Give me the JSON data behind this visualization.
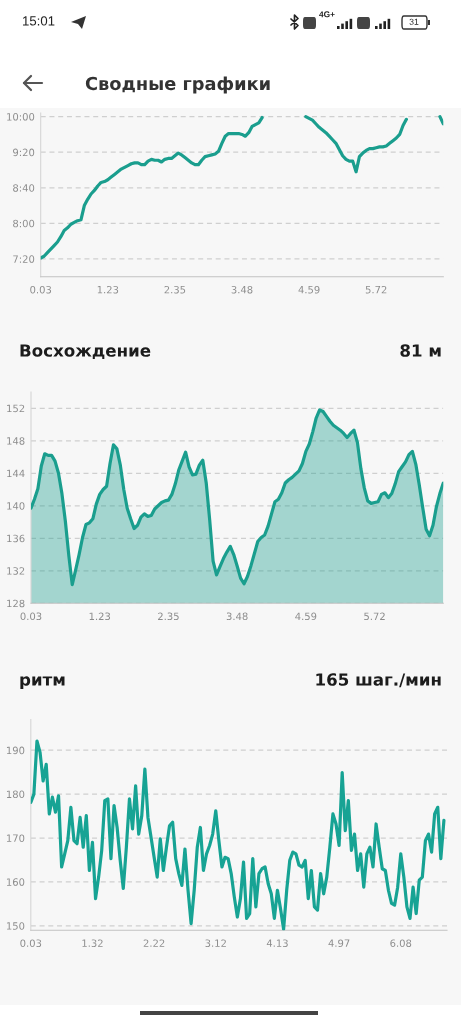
{
  "chart_data": [
    {
      "type": "other",
      "title": "Сводные графики",
      "annotations": [
        "15:01",
        "4G+",
        "31"
      ]
    },
    {
      "type": "line",
      "color": "#1a9e8e",
      "ylim": [
        420,
        604
      ],
      "grid": "y",
      "yticks": [
        {
          "value": 440,
          "label": "7:20"
        },
        {
          "value": 480,
          "label": "8:00"
        },
        {
          "value": 520,
          "label": "8:40"
        },
        {
          "value": 560,
          "label": "9:20"
        },
        {
          "value": 600,
          "label": "10:00"
        }
      ],
      "categories": [
        "0.03",
        null,
        null,
        null,
        null,
        null,
        null,
        null,
        null,
        null,
        null,
        null,
        null,
        null,
        null,
        null,
        null,
        null,
        null,
        null,
        "1.23",
        null,
        null,
        null,
        null,
        null,
        null,
        null,
        null,
        null,
        null,
        null,
        null,
        null,
        null,
        null,
        null,
        null,
        null,
        null,
        "2.35",
        null,
        null,
        null,
        null,
        null,
        null,
        null,
        null,
        null,
        null,
        null,
        null,
        null,
        null,
        null,
        null,
        null,
        null,
        null,
        "3.48",
        null,
        null,
        null,
        null,
        null,
        null,
        null,
        null,
        null,
        null,
        null,
        null,
        null,
        null,
        null,
        null,
        null,
        null,
        null,
        "4.59",
        null,
        null,
        null,
        null,
        null,
        null,
        null,
        null,
        null,
        null,
        null,
        null,
        null,
        null,
        null,
        null,
        null,
        null,
        null,
        "5.72",
        null,
        null,
        null,
        null,
        null,
        null,
        null,
        null,
        null,
        null,
        null,
        null,
        null,
        null,
        null,
        null,
        null,
        null,
        null,
        null
      ],
      "values": [
        441,
        443,
        447,
        451,
        455,
        459,
        465,
        472,
        475,
        479,
        481,
        483,
        484,
        500,
        507,
        513,
        517,
        522,
        526,
        527,
        529,
        532,
        535,
        538,
        541,
        543,
        545,
        547,
        548,
        548,
        546,
        546,
        550,
        552,
        551,
        551,
        549,
        552,
        553,
        553,
        556,
        559,
        557,
        554,
        551,
        548,
        546,
        546,
        551,
        555,
        556,
        557,
        558,
        561,
        570,
        578,
        581,
        581,
        581,
        581,
        580,
        578,
        582,
        589,
        591,
        593,
        599,
        null,
        null,
        null,
        null,
        null,
        null,
        null,
        null,
        null,
        null,
        null,
        null,
        600,
        598,
        596,
        592,
        588,
        585,
        582,
        578,
        574,
        570,
        563,
        556,
        552,
        550,
        550,
        538,
        555,
        559,
        562,
        564,
        564,
        565,
        566,
        566,
        567,
        570,
        573,
        576,
        580,
        590,
        597,
        null,
        null,
        null,
        null,
        null,
        null,
        null,
        null,
        null,
        600,
        592
      ]
    },
    {
      "type": "area",
      "title": "Восхождение",
      "subtitle": "81 м",
      "color": "#1a9e8e",
      "ylim": [
        128,
        154
      ],
      "grid": "y",
      "yticks": [
        128,
        132,
        136,
        140,
        144,
        148,
        152
      ],
      "categories": [
        "0.03",
        null,
        null,
        null,
        null,
        null,
        null,
        null,
        null,
        null,
        null,
        null,
        null,
        null,
        null,
        null,
        null,
        null,
        null,
        null,
        "1.23",
        null,
        null,
        null,
        null,
        null,
        null,
        null,
        null,
        null,
        null,
        null,
        null,
        null,
        null,
        null,
        null,
        null,
        null,
        null,
        "2.35",
        null,
        null,
        null,
        null,
        null,
        null,
        null,
        null,
        null,
        null,
        null,
        null,
        null,
        null,
        null,
        null,
        null,
        null,
        null,
        "3.48",
        null,
        null,
        null,
        null,
        null,
        null,
        null,
        null,
        null,
        null,
        null,
        null,
        null,
        null,
        null,
        null,
        null,
        null,
        null,
        "4.59",
        null,
        null,
        null,
        null,
        null,
        null,
        null,
        null,
        null,
        null,
        null,
        null,
        null,
        null,
        null,
        null,
        null,
        null,
        null,
        "5.72",
        null,
        null,
        null,
        null,
        null,
        null,
        null,
        null,
        null,
        null,
        null,
        null,
        null,
        null,
        null,
        null,
        null,
        null,
        null,
        null
      ],
      "values": [
        139.7,
        140.8,
        142.1,
        144.9,
        146.4,
        146.2,
        146.2,
        145.5,
        144.0,
        141.5,
        138.1,
        133.9,
        130.3,
        132.1,
        134.0,
        136.1,
        137.7,
        137.9,
        138.4,
        140.2,
        141.4,
        142.0,
        142.4,
        145.2,
        147.5,
        147.0,
        145.0,
        142.0,
        139.7,
        138.4,
        137.2,
        137.6,
        138.6,
        139.0,
        138.7,
        138.8,
        139.6,
        140.0,
        140.4,
        140.6,
        140.7,
        141.4,
        142.7,
        144.4,
        145.5,
        146.6,
        144.8,
        143.8,
        143.9,
        145.0,
        145.6,
        142.8,
        138.3,
        133.2,
        131.5,
        132.5,
        133.5,
        134.3,
        135.0,
        134.0,
        132.6,
        131.1,
        130.4,
        131.3,
        132.6,
        134.1,
        135.6,
        136.1,
        136.4,
        137.5,
        139.0,
        140.5,
        140.8,
        141.6,
        142.8,
        143.2,
        143.5,
        143.9,
        144.3,
        145.2,
        146.7,
        147.6,
        149.1,
        150.8,
        151.8,
        151.6,
        151.0,
        150.4,
        149.9,
        149.6,
        149.3,
        148.9,
        148.4,
        148.9,
        149.3,
        147.8,
        144.6,
        142.2,
        140.6,
        140.3,
        140.4,
        140.5,
        141.4,
        141.6,
        141.0,
        141.5,
        142.7,
        144.2,
        144.8,
        145.4,
        146.3,
        146.7,
        145.1,
        142.6,
        139.8,
        137.1,
        136.3,
        137.6,
        139.9,
        141.5,
        142.8
      ]
    },
    {
      "type": "line",
      "title": "ритм",
      "subtitle": "165 шаг./мин",
      "color": "#17a394",
      "ylim": [
        149,
        197
      ],
      "grid": "y",
      "yticks": [
        150,
        160,
        170,
        180,
        190
      ],
      "categories": [
        "0.03",
        null,
        null,
        null,
        null,
        null,
        null,
        null,
        null,
        null,
        null,
        null,
        null,
        null,
        null,
        null,
        null,
        null,
        null,
        null,
        "1.32",
        null,
        null,
        null,
        null,
        null,
        null,
        null,
        null,
        null,
        null,
        null,
        null,
        null,
        null,
        null,
        null,
        null,
        null,
        null,
        "2.22",
        null,
        null,
        null,
        null,
        null,
        null,
        null,
        null,
        null,
        null,
        null,
        null,
        null,
        null,
        null,
        null,
        null,
        null,
        null,
        "3.12",
        null,
        null,
        null,
        null,
        null,
        null,
        null,
        null,
        null,
        null,
        null,
        null,
        null,
        null,
        null,
        null,
        null,
        null,
        null,
        "4.13",
        null,
        null,
        null,
        null,
        null,
        null,
        null,
        null,
        null,
        null,
        null,
        null,
        null,
        null,
        null,
        null,
        null,
        null,
        null,
        "4.97",
        null,
        null,
        null,
        null,
        null,
        null,
        null,
        null,
        null,
        null,
        null,
        null,
        null,
        null,
        null,
        null,
        null,
        null,
        null,
        "6.08",
        null,
        null,
        null,
        null,
        null,
        null,
        null,
        null,
        null,
        null,
        null,
        null,
        null,
        null,
        null
      ],
      "values": [
        178.1,
        180.0,
        192.1,
        189.5,
        183.0,
        186.8,
        175.5,
        179.3,
        175.9,
        179.6,
        163.4,
        166.4,
        169.4,
        177.0,
        169.4,
        168.7,
        174.7,
        167.9,
        175.1,
        162.6,
        169.0,
        156.2,
        161.1,
        167.2,
        178.5,
        178.9,
        165.3,
        177.4,
        172.4,
        164.9,
        158.5,
        167.9,
        178.9,
        172.1,
        181.9,
        170.9,
        175.1,
        185.7,
        174.7,
        170.2,
        165.6,
        161.1,
        169.8,
        162.6,
        167.9,
        172.8,
        173.6,
        165.3,
        161.9,
        159.2,
        167.5,
        158.1,
        150.5,
        158.1,
        167.9,
        172.4,
        162.6,
        166.4,
        168.3,
        170.9,
        176.2,
        169.4,
        163.4,
        165.6,
        165.3,
        161.9,
        156.6,
        152.0,
        156.2,
        164.5,
        151.7,
        152.8,
        165.3,
        154.3,
        161.9,
        163.0,
        163.4,
        159.6,
        157.3,
        151.7,
        158.1,
        153.9,
        149.2,
        158.1,
        164.9,
        166.8,
        166.4,
        163.8,
        163.4,
        164.9,
        156.2,
        162.6,
        154.3,
        153.6,
        161.9,
        157.3,
        161.1,
        167.9,
        175.5,
        173.2,
        168.3,
        184.9,
        171.7,
        178.5,
        167.2,
        170.9,
        162.6,
        166.4,
        158.8,
        166.4,
        167.9,
        163.4,
        173.2,
        167.9,
        163.0,
        162.6,
        158.1,
        155.1,
        154.7,
        158.8,
        166.4,
        161.1,
        154.3,
        151.7,
        158.8,
        152.8,
        160.4,
        161.1,
        169.4,
        170.9,
        166.8,
        175.5,
        177.0,
        165.3,
        174.0,
        null
      ]
    }
  ]
}
